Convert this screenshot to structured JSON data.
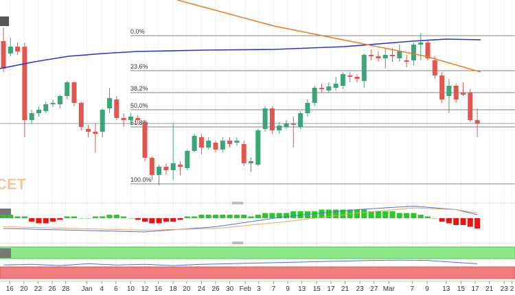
{
  "chart_data": {
    "type": "candlestick",
    "watermark": "CET",
    "xlim": [
      -0.485,
      72.33
    ],
    "ylim": [
      5,
      300
    ],
    "colors": {
      "up": "#3aa676",
      "down": "#e0574f"
    },
    "open": [
      240,
      222,
      232,
      232,
      125,
      135,
      138,
      148,
      148,
      160,
      180,
      150,
      112,
      108,
      108,
      142,
      155,
      128,
      125,
      128,
      122,
      70,
      45,
      57,
      52,
      60,
      55,
      80,
      100,
      85,
      92,
      82,
      95,
      92,
      90,
      62,
      60,
      112,
      142,
      110,
      115,
      120,
      115,
      135,
      150,
      172,
      168,
      172,
      175,
      190,
      188,
      182,
      220,
      218,
      215,
      220,
      215,
      212,
      212,
      235,
      238,
      212,
      190,
      160,
      175,
      165,
      165,
      125
    ],
    "high": [
      260,
      245,
      238,
      238,
      140,
      145,
      152,
      155,
      162,
      182,
      182,
      152,
      118,
      120,
      142,
      172,
      160,
      135,
      135,
      132,
      125,
      72,
      60,
      62,
      120,
      65,
      82,
      105,
      105,
      100,
      95,
      100,
      100,
      100,
      95,
      70,
      112,
      145,
      145,
      122,
      125,
      130,
      138,
      155,
      175,
      178,
      180,
      188,
      195,
      195,
      192,
      222,
      228,
      225,
      230,
      230,
      235,
      220,
      238,
      252,
      242,
      218,
      195,
      185,
      178,
      180,
      170,
      142
    ],
    "low": [
      195,
      218,
      220,
      100,
      120,
      130,
      135,
      144,
      142,
      155,
      145,
      110,
      100,
      78,
      100,
      135,
      125,
      115,
      118,
      120,
      65,
      38,
      30,
      45,
      38,
      45,
      52,
      78,
      75,
      82,
      78,
      78,
      85,
      88,
      58,
      50,
      58,
      108,
      105,
      105,
      112,
      85,
      112,
      130,
      145,
      165,
      165,
      168,
      170,
      180,
      180,
      172,
      212,
      210,
      200,
      210,
      210,
      202,
      205,
      212,
      212,
      185,
      150,
      135,
      150,
      160,
      122,
      100
    ],
    "close": [
      200,
      232,
      225,
      125,
      135,
      140,
      148,
      150,
      160,
      180,
      150,
      115,
      108,
      105,
      140,
      157,
      128,
      125,
      130,
      125,
      70,
      45,
      57,
      52,
      62,
      57,
      80,
      102,
      85,
      95,
      82,
      95,
      90,
      95,
      62,
      65,
      110,
      142,
      110,
      117,
      120,
      118,
      135,
      150,
      172,
      170,
      174,
      178,
      192,
      188,
      185,
      220,
      218,
      215,
      220,
      218,
      225,
      210,
      235,
      238,
      215,
      190,
      155,
      175,
      155,
      162,
      125,
      120
    ],
    "xticks": [
      {
        "value": 0.9,
        "label": "16"
      },
      {
        "value": 2.9,
        "label": "20"
      },
      {
        "value": 4.9,
        "label": "22"
      },
      {
        "value": 6.9,
        "label": "26"
      },
      {
        "value": 8.8,
        "label": "28"
      },
      {
        "value": 11.8,
        "label": "Jan"
      },
      {
        "value": 13.9,
        "label": "4"
      },
      {
        "value": 15.9,
        "label": "6"
      },
      {
        "value": 18,
        "label": "10"
      },
      {
        "value": 20,
        "label": "12"
      },
      {
        "value": 21.9,
        "label": "16"
      },
      {
        "value": 24,
        "label": "18"
      },
      {
        "value": 25.9,
        "label": "20"
      },
      {
        "value": 28,
        "label": "24"
      },
      {
        "value": 30,
        "label": "26"
      },
      {
        "value": 32,
        "label": "30"
      },
      {
        "value": 34.2,
        "label": "Feb"
      },
      {
        "value": 36.1,
        "label": "3"
      },
      {
        "value": 38.2,
        "label": "7"
      },
      {
        "value": 40.2,
        "label": "9"
      },
      {
        "value": 42.2,
        "label": "13"
      },
      {
        "value": 44.3,
        "label": "15"
      },
      {
        "value": 46.3,
        "label": "17"
      },
      {
        "value": 48.3,
        "label": "21"
      },
      {
        "value": 50.4,
        "label": "23"
      },
      {
        "value": 52.4,
        "label": "27"
      },
      {
        "value": 54.5,
        "label": "Mar"
      },
      {
        "value": 57.8,
        "label": "7"
      },
      {
        "value": 59.9,
        "label": "9"
      },
      {
        "value": 62.6,
        "label": "13"
      },
      {
        "value": 64.7,
        "label": "15"
      },
      {
        "value": 66.7,
        "label": "17"
      },
      {
        "value": 68.7,
        "label": "21"
      },
      {
        "value": 70.8,
        "label": "23"
      },
      {
        "value": 71.9,
        "label": "2"
      }
    ],
    "lines": [
      {
        "color": "#2336d6",
        "x": [
          -0.5,
          4.4,
          9.2,
          14.1,
          18.9,
          28.6,
          38.3,
          48.1,
          57.8,
          62.6,
          67.5
        ],
        "values": [
          200,
          210,
          218,
          222,
          225,
          227,
          228,
          232,
          240,
          243,
          242
        ]
      },
      {
        "color": "#f07a22",
        "x": [
          24.6,
          38.3,
          51.9,
          59.7,
          67.5
        ],
        "values": [
          300,
          262,
          234,
          218,
          195
        ]
      }
    ],
    "fib_levels": [
      {
        "label": "0.0%",
        "value": 248
      },
      {
        "label": "23.6%",
        "value": 197
      },
      {
        "label": "38.2%",
        "value": 165
      },
      {
        "label": "50.0%",
        "value": 140
      },
      {
        "label": "61.8%",
        "value": 115
      },
      {
        "label": "100.0%",
        "value": 32
      }
    ],
    "macd": {
      "ylim": [
        -10.8,
        7.2
      ],
      "histogram": [
        2,
        2,
        1,
        1,
        -2,
        -3,
        -3,
        -2,
        -1,
        1,
        1,
        0,
        0,
        1,
        1,
        2,
        2,
        1,
        0,
        -1,
        -2,
        -3,
        -3,
        -2,
        -2,
        -1,
        1,
        1,
        2,
        2,
        2,
        2,
        2,
        2,
        2,
        1,
        2,
        3,
        3,
        3,
        3,
        4,
        4,
        4,
        4,
        5,
        5,
        5,
        5,
        5,
        5,
        5,
        4,
        4,
        4,
        4,
        3,
        3,
        3,
        2,
        1,
        0,
        -2,
        -3,
        -4,
        -4,
        -5,
        -6
      ],
      "lines": [
        {
          "color": "#4a6fe0",
          "x": [
            0,
            10,
            20,
            30,
            40,
            50,
            58,
            64,
            67
          ],
          "values": [
            -6,
            -7,
            -8,
            -5,
            1,
            5,
            7,
            5,
            2
          ]
        },
        {
          "color": "#f0a060",
          "x": [
            0,
            10,
            20,
            30,
            40,
            50,
            58,
            64,
            67
          ],
          "values": [
            -5,
            -6,
            -7,
            -6,
            -2,
            3,
            6,
            5,
            3
          ]
        }
      ]
    },
    "rsi": {
      "ylim": [
        0,
        100
      ],
      "color": "#4a6fe0",
      "x": [
        0,
        4,
        8,
        12,
        16,
        20,
        24,
        28,
        32,
        36,
        40,
        44,
        48,
        52,
        56,
        60,
        64,
        67
      ],
      "values": [
        40,
        42,
        38,
        44,
        40,
        42,
        38,
        42,
        44,
        46,
        48,
        50,
        52,
        54,
        55,
        54,
        48,
        44
      ]
    }
  }
}
